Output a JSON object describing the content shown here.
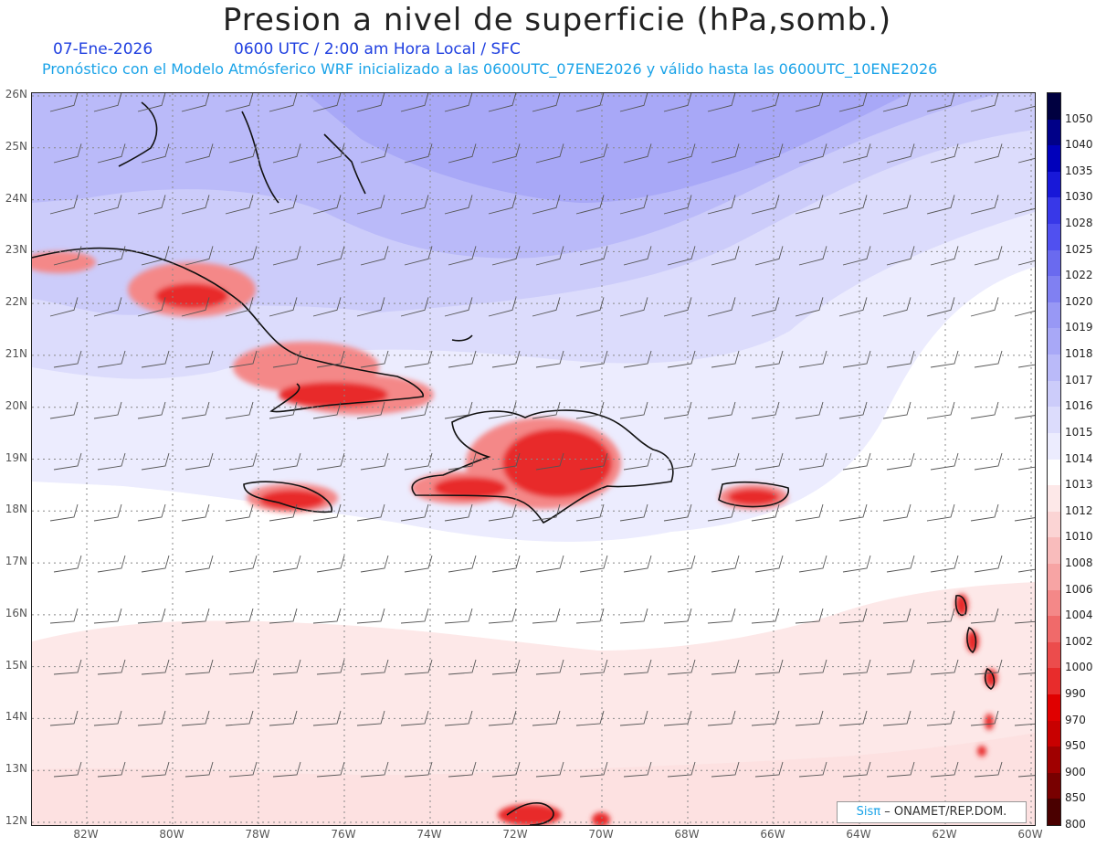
{
  "title": "Presion a nivel de superficie (hPa,somb.)",
  "subtitle_date": "07-Ene-2026",
  "subtitle_time": "0600 UTC / 2:00 am Hora Local / SFC",
  "subtitle_forecast": "Pronóstico con el Modelo Atmósferico WRF inicializado a las 0600UTC_07ENE2026 y válido hasta las  0600UTC_10ENE2026",
  "lat_labels": [
    "26N",
    "25N",
    "24N",
    "23N",
    "22N",
    "21N",
    "20N",
    "19N",
    "18N",
    "17N",
    "16N",
    "15N",
    "14N",
    "13N",
    "12N"
  ],
  "lon_labels": [
    "82W",
    "80W",
    "78W",
    "76W",
    "74W",
    "72W",
    "70W",
    "68W",
    "66W",
    "64W",
    "62W",
    "60W"
  ],
  "colorbar": {
    "labels": [
      "1050",
      "1040",
      "1035",
      "1030",
      "1028",
      "1025",
      "1022",
      "1020",
      "1019",
      "1018",
      "1017",
      "1016",
      "1015",
      "1014",
      "1013",
      "1012",
      "1010",
      "1008",
      "1006",
      "1004",
      "1002",
      "1000",
      "990",
      "970",
      "950",
      "900",
      "850",
      "800"
    ],
    "colors": [
      "#000040",
      "#000088",
      "#0000bb",
      "#1818d8",
      "#3838e8",
      "#5050f0",
      "#6a6aef",
      "#8080f2",
      "#9898f5",
      "#a8a8f7",
      "#babaf9",
      "#ccccfa",
      "#dcdcfc",
      "#ececfe",
      "#ffffff",
      "#fde8e8",
      "#fbd4d4",
      "#f9bcbc",
      "#f7a4a4",
      "#f48888",
      "#f06a6a",
      "#ec4c4c",
      "#e82c2c",
      "#e00000",
      "#c80000",
      "#a00000",
      "#780000",
      "#4a0000"
    ]
  },
  "credit": {
    "brand": "Sisπ",
    "text": "– ONAMET/REP.DOM."
  }
}
